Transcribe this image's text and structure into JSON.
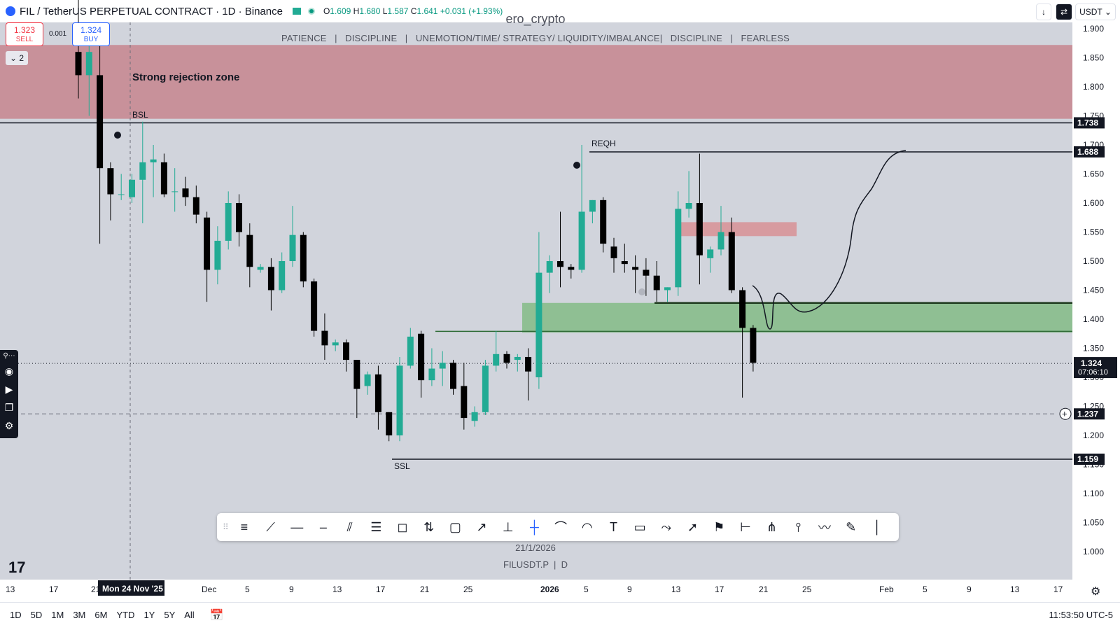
{
  "header": {
    "symbol_line": "FIL / TetherUS PERPETUAL CONTRACT · 1D · Binance",
    "ohlc": {
      "o_label": "O",
      "o": "1.609",
      "h_label": "H",
      "h": "1.680",
      "l_label": "L",
      "l": "1.587",
      "c_label": "C",
      "c": "1.641",
      "change": "+0.031 (+1.93%)"
    },
    "sell_price": "1.323",
    "sell_label": "SELL",
    "buy_price": "1.324",
    "buy_label": "BUY",
    "spread": "0.001",
    "collapse_count": "2"
  },
  "watermark": {
    "author": "ero_crypto",
    "motto": "PATIENCE   |   DISCIPLINE   |   UNEMOTION/TIME/ STRATEGY/ LIQUIDITY/IMBALANCE|   DISCIPLINE   |   FEARLESS"
  },
  "top_right": {
    "down_icon": "arrow-down-icon",
    "swap_icon": "swap-icon",
    "currency": "USDT"
  },
  "annotations": {
    "zone_label": "Strong rejection zone",
    "bsl": "BSL",
    "reqh": "REQH",
    "ssl": "SSL"
  },
  "price_axis": {
    "ticks": [
      "1.900",
      "1.850",
      "1.800",
      "1.750",
      "1.700",
      "1.650",
      "1.600",
      "1.550",
      "1.500",
      "1.450",
      "1.400",
      "1.350",
      "1.300",
      "1.250",
      "1.200",
      "1.150",
      "1.100",
      "1.050",
      "1.000"
    ],
    "tick_values": [
      1.9,
      1.85,
      1.8,
      1.75,
      1.7,
      1.65,
      1.6,
      1.55,
      1.5,
      1.45,
      1.4,
      1.35,
      1.3,
      1.25,
      1.2,
      1.15,
      1.1,
      1.05,
      1.0
    ],
    "labels": [
      {
        "value": 1.738,
        "text": "1.738"
      },
      {
        "value": 1.688,
        "text": "1.688"
      },
      {
        "value": 1.159,
        "text": "1.159"
      },
      {
        "value": 1.237,
        "text": "1.237"
      }
    ],
    "current_price": "1.324",
    "countdown": "07:06:10"
  },
  "time_axis": {
    "labels": [
      "13",
      "17",
      "21",
      "Dec",
      "5",
      "9",
      "13",
      "17",
      "21",
      "25",
      "2026",
      "5",
      "9",
      "13",
      "17",
      "21",
      "25",
      "Feb",
      "5",
      "9",
      "13",
      "17"
    ],
    "crosshair_date": "Mon 24 Nov '25"
  },
  "center_date": "21/1/2026",
  "symbol_footer": "FILUSDT.P  |  D",
  "toolbar_tools": [
    "horizontal-lines-icon",
    "trend-line-icon",
    "horizontal-ray-icon",
    "horizontal-line-icon",
    "parallel-channel-icon",
    "regression-icon",
    "callout-icon",
    "long-position-icon",
    "rectangle-icon",
    "arrow-icon",
    "vertical-measure-icon",
    "crosshair-icon",
    "curve-icon",
    "arc-icon",
    "text-icon",
    "comment-icon",
    "path-icon",
    "arrow-marker-icon",
    "flag-icon",
    "date-range-icon",
    "pitchfork-icon",
    "anchored-vwap-icon",
    "polyline-icon",
    "brush-icon",
    "vertical-line-icon"
  ],
  "bottom_bar": {
    "ranges": [
      "1D",
      "5D",
      "1M",
      "3M",
      "6M",
      "YTD",
      "1Y",
      "5Y",
      "All"
    ],
    "clock": "11:53:50 UTC-5"
  },
  "chart_data": {
    "type": "candlestick",
    "title": "FIL / TetherUS PERPETUAL CONTRACT · 1D · Binance",
    "ylim": [
      0.97,
      1.915
    ],
    "colors": {
      "up": "#22ab94",
      "down": "#000000",
      "rejection_zone": "#c8919a",
      "demand_zone": "#8fbf93",
      "supply_box": "#d79ba0"
    },
    "candles": [
      {
        "o": 1.86,
        "h": 1.95,
        "l": 1.78,
        "c": 1.82
      },
      {
        "o": 1.82,
        "h": 1.87,
        "l": 1.75,
        "c": 1.86
      },
      {
        "o": 1.82,
        "h": 1.88,
        "l": 1.53,
        "c": 1.66
      },
      {
        "o": 1.66,
        "h": 1.67,
        "l": 1.57,
        "c": 1.615
      },
      {
        "o": 1.615,
        "h": 1.65,
        "l": 1.605,
        "c": 1.615
      },
      {
        "o": 1.61,
        "h": 1.65,
        "l": 1.6,
        "c": 1.64
      },
      {
        "o": 1.64,
        "h": 1.74,
        "l": 1.565,
        "c": 1.67
      },
      {
        "o": 1.67,
        "h": 1.7,
        "l": 1.61,
        "c": 1.675
      },
      {
        "o": 1.67,
        "h": 1.685,
        "l": 1.61,
        "c": 1.615
      },
      {
        "o": 1.62,
        "h": 1.66,
        "l": 1.585,
        "c": 1.62
      },
      {
        "o": 1.625,
        "h": 1.645,
        "l": 1.595,
        "c": 1.61
      },
      {
        "o": 1.61,
        "h": 1.63,
        "l": 1.565,
        "c": 1.58
      },
      {
        "o": 1.575,
        "h": 1.585,
        "l": 1.43,
        "c": 1.485
      },
      {
        "o": 1.485,
        "h": 1.56,
        "l": 1.46,
        "c": 1.535
      },
      {
        "o": 1.535,
        "h": 1.62,
        "l": 1.52,
        "c": 1.6
      },
      {
        "o": 1.6,
        "h": 1.615,
        "l": 1.525,
        "c": 1.55
      },
      {
        "o": 1.545,
        "h": 1.565,
        "l": 1.455,
        "c": 1.49
      },
      {
        "o": 1.485,
        "h": 1.495,
        "l": 1.48,
        "c": 1.49
      },
      {
        "o": 1.49,
        "h": 1.505,
        "l": 1.415,
        "c": 1.45
      },
      {
        "o": 1.45,
        "h": 1.515,
        "l": 1.445,
        "c": 1.5
      },
      {
        "o": 1.5,
        "h": 1.595,
        "l": 1.49,
        "c": 1.545
      },
      {
        "o": 1.545,
        "h": 1.55,
        "l": 1.455,
        "c": 1.465
      },
      {
        "o": 1.465,
        "h": 1.47,
        "l": 1.37,
        "c": 1.38
      },
      {
        "o": 1.38,
        "h": 1.41,
        "l": 1.33,
        "c": 1.355
      },
      {
        "o": 1.355,
        "h": 1.365,
        "l": 1.345,
        "c": 1.36
      },
      {
        "o": 1.36,
        "h": 1.365,
        "l": 1.31,
        "c": 1.33
      },
      {
        "o": 1.33,
        "h": 1.33,
        "l": 1.23,
        "c": 1.28
      },
      {
        "o": 1.285,
        "h": 1.31,
        "l": 1.27,
        "c": 1.305
      },
      {
        "o": 1.305,
        "h": 1.32,
        "l": 1.21,
        "c": 1.24
      },
      {
        "o": 1.24,
        "h": 1.24,
        "l": 1.19,
        "c": 1.2
      },
      {
        "o": 1.2,
        "h": 1.335,
        "l": 1.19,
        "c": 1.32
      },
      {
        "o": 1.32,
        "h": 1.385,
        "l": 1.315,
        "c": 1.37
      },
      {
        "o": 1.375,
        "h": 1.38,
        "l": 1.265,
        "c": 1.295
      },
      {
        "o": 1.295,
        "h": 1.35,
        "l": 1.285,
        "c": 1.315
      },
      {
        "o": 1.315,
        "h": 1.345,
        "l": 1.285,
        "c": 1.325
      },
      {
        "o": 1.325,
        "h": 1.33,
        "l": 1.27,
        "c": 1.28
      },
      {
        "o": 1.285,
        "h": 1.325,
        "l": 1.21,
        "c": 1.23
      },
      {
        "o": 1.225,
        "h": 1.25,
        "l": 1.215,
        "c": 1.24
      },
      {
        "o": 1.24,
        "h": 1.33,
        "l": 1.235,
        "c": 1.32
      },
      {
        "o": 1.32,
        "h": 1.38,
        "l": 1.31,
        "c": 1.34
      },
      {
        "o": 1.34,
        "h": 1.345,
        "l": 1.315,
        "c": 1.325
      },
      {
        "o": 1.33,
        "h": 1.34,
        "l": 1.31,
        "c": 1.335
      },
      {
        "o": 1.335,
        "h": 1.35,
        "l": 1.26,
        "c": 1.31
      },
      {
        "o": 1.3,
        "h": 1.55,
        "l": 1.28,
        "c": 1.48
      },
      {
        "o": 1.48,
        "h": 1.51,
        "l": 1.445,
        "c": 1.5
      },
      {
        "o": 1.5,
        "h": 1.585,
        "l": 1.455,
        "c": 1.49
      },
      {
        "o": 1.49,
        "h": 1.495,
        "l": 1.47,
        "c": 1.485
      },
      {
        "o": 1.485,
        "h": 1.7,
        "l": 1.48,
        "c": 1.585
      },
      {
        "o": 1.585,
        "h": 1.605,
        "l": 1.565,
        "c": 1.605
      },
      {
        "o": 1.605,
        "h": 1.61,
        "l": 1.515,
        "c": 1.53
      },
      {
        "o": 1.525,
        "h": 1.54,
        "l": 1.48,
        "c": 1.505
      },
      {
        "o": 1.5,
        "h": 1.53,
        "l": 1.48,
        "c": 1.495
      },
      {
        "o": 1.49,
        "h": 1.51,
        "l": 1.445,
        "c": 1.485
      },
      {
        "o": 1.485,
        "h": 1.505,
        "l": 1.44,
        "c": 1.475
      },
      {
        "o": 1.475,
        "h": 1.5,
        "l": 1.43,
        "c": 1.45
      },
      {
        "o": 1.45,
        "h": 1.455,
        "l": 1.43,
        "c": 1.455
      },
      {
        "o": 1.455,
        "h": 1.62,
        "l": 1.44,
        "c": 1.59
      },
      {
        "o": 1.59,
        "h": 1.655,
        "l": 1.575,
        "c": 1.6
      },
      {
        "o": 1.6,
        "h": 1.685,
        "l": 1.46,
        "c": 1.51
      },
      {
        "o": 1.505,
        "h": 1.525,
        "l": 1.48,
        "c": 1.52
      },
      {
        "o": 1.52,
        "h": 1.595,
        "l": 1.51,
        "c": 1.55
      },
      {
        "o": 1.55,
        "h": 1.575,
        "l": 1.445,
        "c": 1.45
      },
      {
        "o": 1.45,
        "h": 1.455,
        "l": 1.265,
        "c": 1.385
      },
      {
        "o": 1.385,
        "h": 1.39,
        "l": 1.31,
        "c": 1.325
      }
    ]
  }
}
